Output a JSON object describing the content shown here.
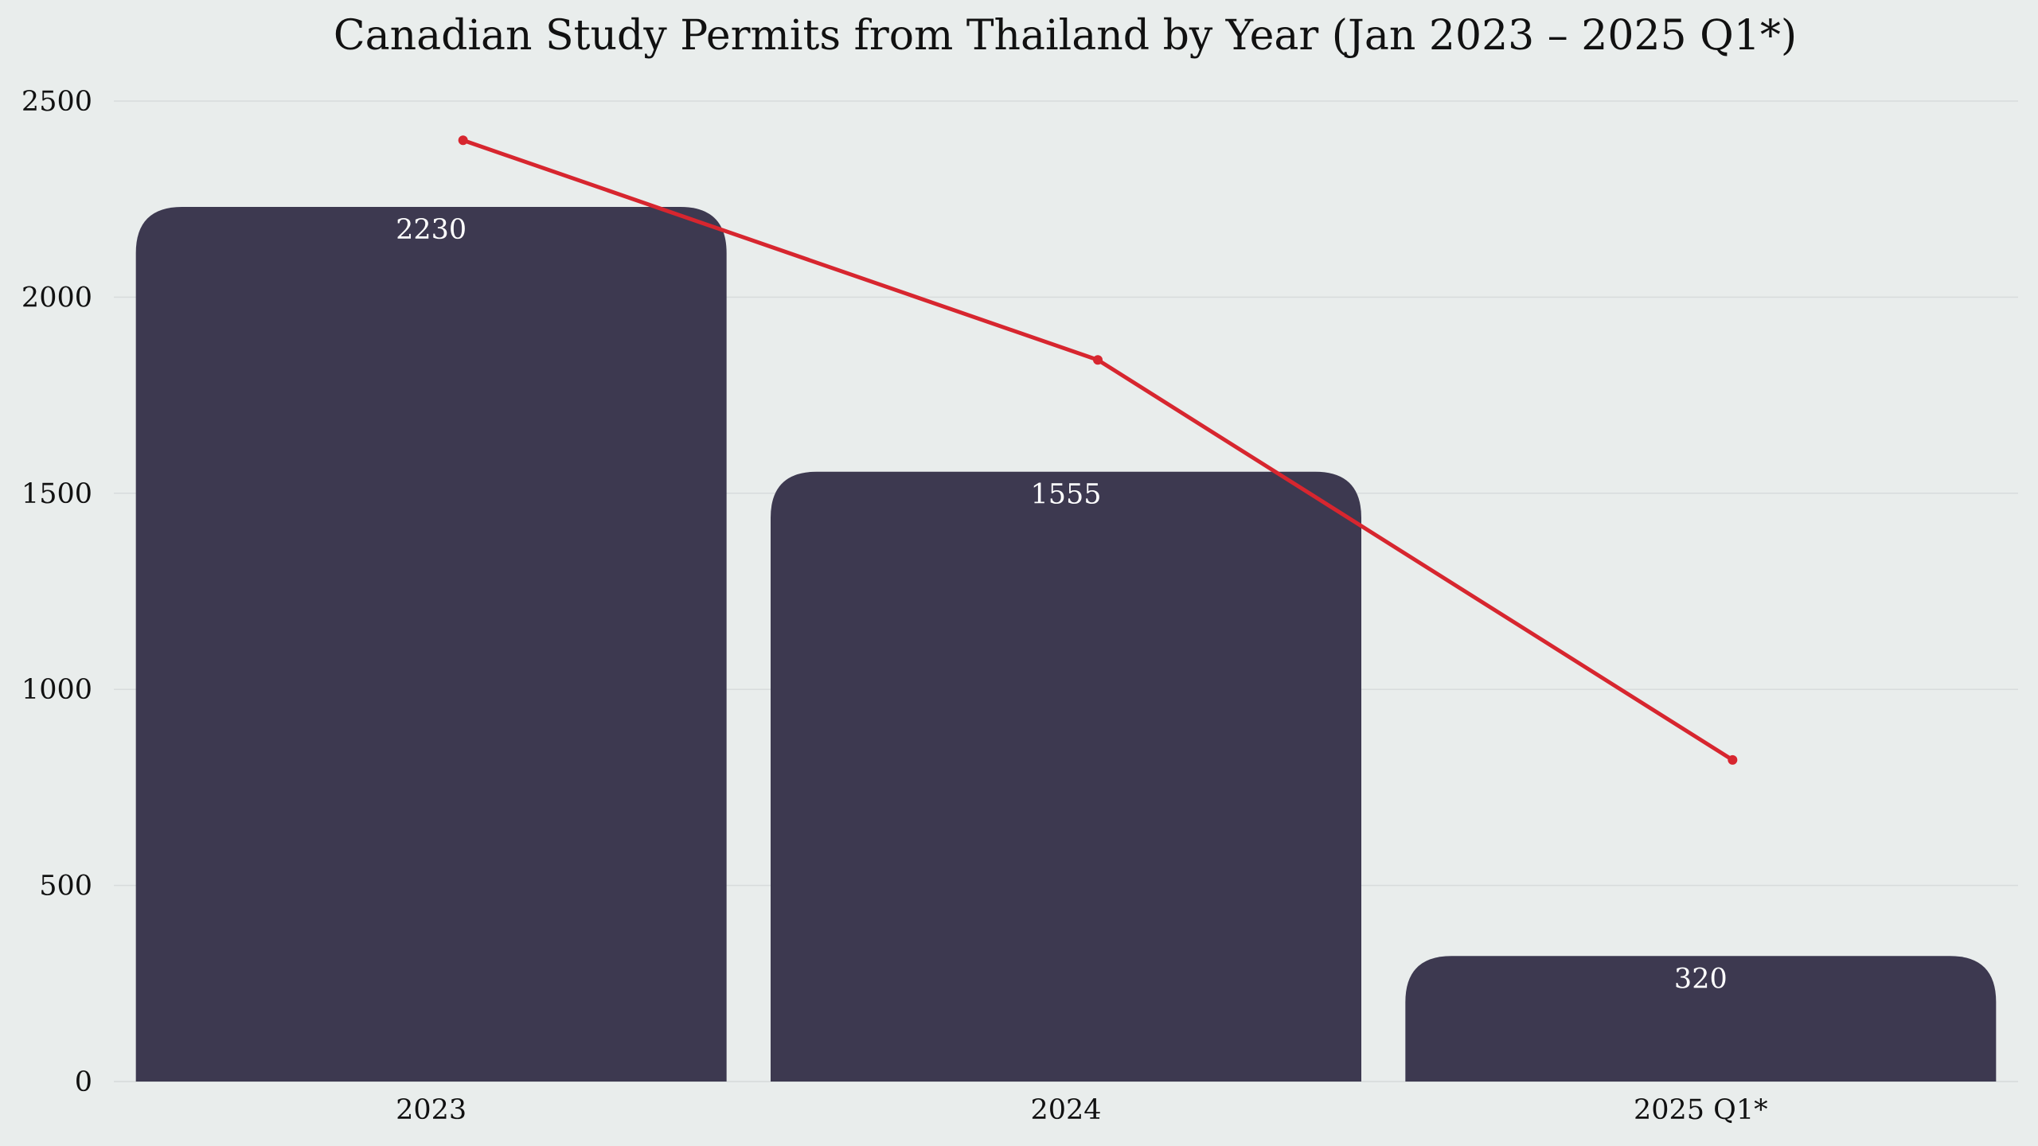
{
  "chart_data": {
    "type": "bar",
    "title": "Canadian Study Permits from Thailand by Year (Jan 2023 – 2025 Q1*)",
    "xlabel": "",
    "ylabel": "",
    "categories": [
      "2023",
      "2024",
      "2025 Q1*"
    ],
    "series": [
      {
        "type": "bar",
        "values": [
          2230,
          1555,
          320
        ],
        "labels": [
          "2230",
          "1555",
          "320"
        ]
      },
      {
        "type": "line",
        "values": [
          2400,
          1840,
          820
        ]
      }
    ],
    "ylim": [
      0,
      2500
    ],
    "yticks": [
      "0",
      "500",
      "1000",
      "1500",
      "2000",
      "2500"
    ],
    "grid": "horizontal",
    "legend": "none",
    "colors": {
      "bar": "#3d3950",
      "line": "#d7262f",
      "background": "#e9edec",
      "grid": "#d8dcdc",
      "bar_label": "#ffffff"
    }
  }
}
